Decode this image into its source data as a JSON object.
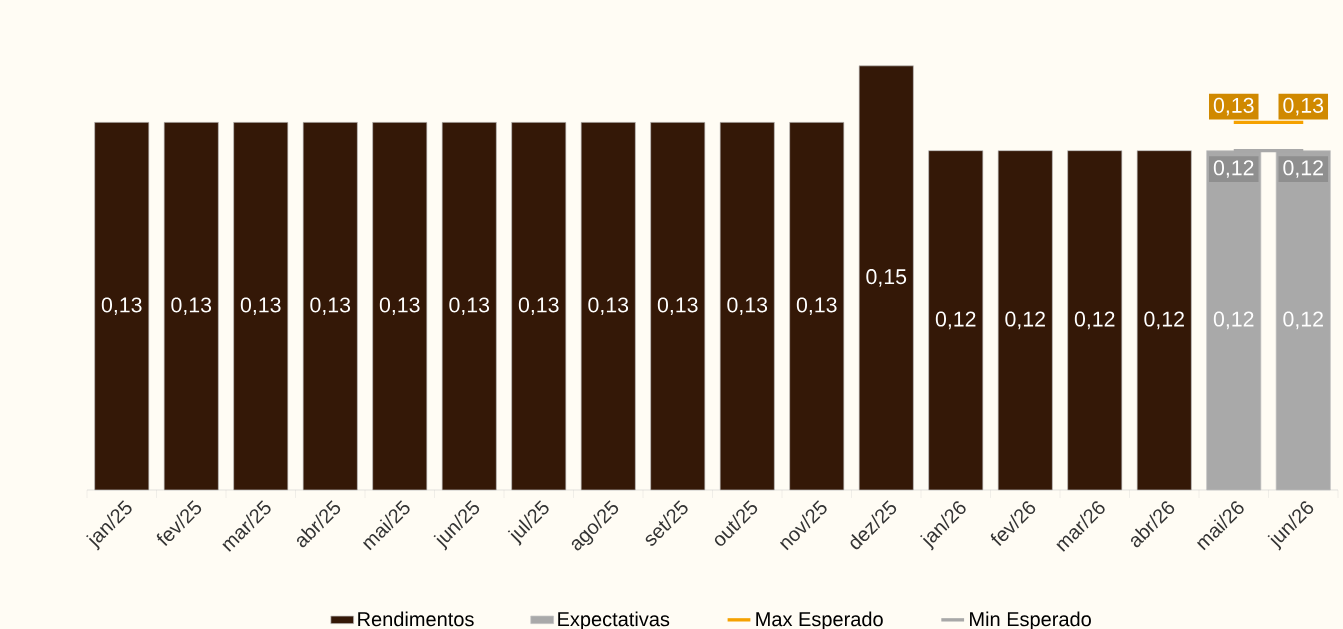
{
  "chart_data": {
    "type": "bar",
    "categories": [
      "jan/25",
      "fev/25",
      "mar/25",
      "abr/25",
      "mai/25",
      "jun/25",
      "jul/25",
      "ago/25",
      "set/25",
      "out/25",
      "nov/25",
      "dez/25",
      "jan/26",
      "fev/26",
      "mar/26",
      "abr/26",
      "mai/26",
      "jun/26"
    ],
    "series": [
      {
        "name": "Rendimentos",
        "color": "#341807",
        "values": [
          0.13,
          0.13,
          0.13,
          0.13,
          0.13,
          0.13,
          0.13,
          0.13,
          0.13,
          0.13,
          0.13,
          0.15,
          0.12,
          0.12,
          0.12,
          0.12,
          null,
          null
        ],
        "value_labels": [
          "0,13",
          "0,13",
          "0,13",
          "0,13",
          "0,13",
          "0,13",
          "0,13",
          "0,13",
          "0,13",
          "0,13",
          "0,13",
          "0,15",
          "0,12",
          "0,12",
          "0,12",
          "0,12",
          null,
          null
        ]
      },
      {
        "name": "Expectativas",
        "color": "#a9a9a9",
        "values": [
          null,
          null,
          null,
          null,
          null,
          null,
          null,
          null,
          null,
          null,
          null,
          null,
          null,
          null,
          null,
          null,
          0.12,
          0.12
        ],
        "value_labels": [
          null,
          null,
          null,
          null,
          null,
          null,
          null,
          null,
          null,
          null,
          null,
          null,
          null,
          null,
          null,
          null,
          "0,12",
          "0,12"
        ]
      },
      {
        "name": "Max Esperado",
        "type": "line",
        "color": "#f5a100",
        "values": [
          null,
          null,
          null,
          null,
          null,
          null,
          null,
          null,
          null,
          null,
          null,
          null,
          null,
          null,
          null,
          null,
          0.13,
          0.13
        ],
        "value_labels": [
          null,
          null,
          null,
          null,
          null,
          null,
          null,
          null,
          null,
          null,
          null,
          null,
          null,
          null,
          null,
          null,
          "0,13",
          "0,13"
        ]
      },
      {
        "name": "Min Esperado",
        "type": "line",
        "color": "#a8a8a8",
        "values": [
          null,
          null,
          null,
          null,
          null,
          null,
          null,
          null,
          null,
          null,
          null,
          null,
          null,
          null,
          null,
          null,
          0.12,
          0.12
        ],
        "value_labels": [
          null,
          null,
          null,
          null,
          null,
          null,
          null,
          null,
          null,
          null,
          null,
          null,
          null,
          null,
          null,
          null,
          "0,12",
          "0,12"
        ]
      }
    ],
    "tick_labels": "x",
    "legend": "bottom"
  }
}
